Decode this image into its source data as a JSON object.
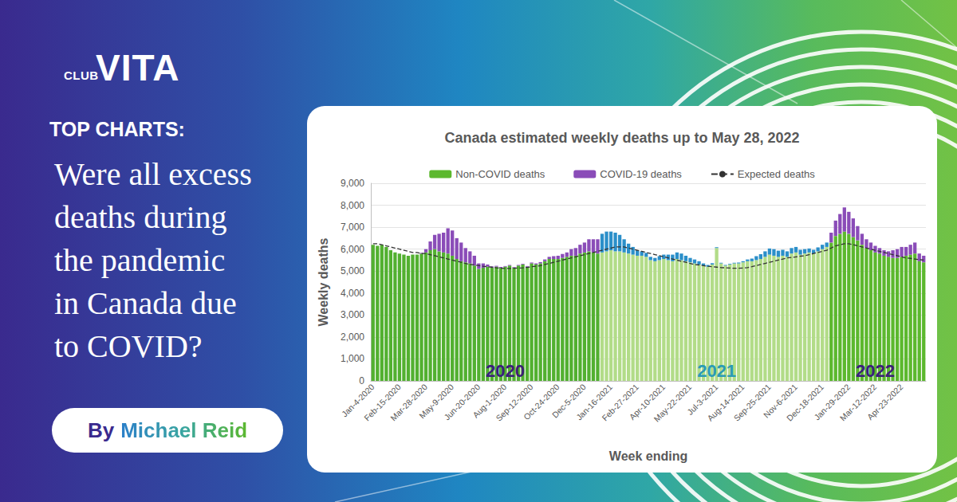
{
  "page": {
    "logo": {
      "small": "CLUB",
      "large": "VITA"
    },
    "kicker": "TOP CHARTS:",
    "headline": [
      "Were all excess",
      "deaths during",
      "the pandemic",
      "in Canada due",
      "to COVID?"
    ],
    "byline": {
      "prefix": "By",
      "name": "Michael Reid"
    }
  },
  "chart_data": {
    "type": "bar",
    "title": "Canada estimated weekly deaths up to May 28, 2022",
    "x_label": "Week ending",
    "y_label": "Weekly deaths",
    "stacked": true,
    "grid": true,
    "legend": "top",
    "ylim": [
      0,
      9000
    ],
    "yticks": [
      0,
      {
        "value": 1000,
        "label": "1,000"
      },
      {
        "value": 2000,
        "label": "2,000"
      },
      {
        "value": 3000,
        "label": "3,000"
      },
      {
        "value": 4000,
        "label": "4,000"
      },
      {
        "value": 5000,
        "label": "5,000"
      },
      {
        "value": 6000,
        "label": "6,000"
      },
      {
        "value": 7000,
        "label": "7,000"
      },
      {
        "value": 8000,
        "label": "8,000"
      },
      {
        "value": 9000,
        "label": "9,000"
      }
    ],
    "categories": [
      "Jan-4-2020",
      null,
      null,
      null,
      null,
      null,
      "Feb-15-2020",
      null,
      null,
      null,
      null,
      null,
      "Mar-28-2020",
      null,
      null,
      null,
      null,
      null,
      "May-9-2020",
      null,
      null,
      null,
      null,
      null,
      "Jun-20-2020",
      null,
      null,
      null,
      null,
      null,
      "Aug-1-2020",
      null,
      null,
      null,
      null,
      null,
      "Sep-12-2020",
      null,
      null,
      null,
      null,
      null,
      "Oct-24-2020",
      null,
      null,
      null,
      null,
      null,
      "Dec-5-2020",
      null,
      null,
      null,
      null,
      null,
      "Jan-16-2021",
      null,
      null,
      null,
      null,
      null,
      "Feb-27-2021",
      null,
      null,
      null,
      null,
      null,
      "Apr-10-2021",
      null,
      null,
      null,
      null,
      null,
      "May-22-2021",
      null,
      null,
      null,
      null,
      null,
      "Jul-3-2021",
      null,
      null,
      null,
      null,
      null,
      "Aug-14-2021",
      null,
      null,
      null,
      null,
      null,
      "Sep-25-2021",
      null,
      null,
      null,
      null,
      null,
      "Nov-6-2021",
      null,
      null,
      null,
      null,
      null,
      "Dec-18-2021",
      null,
      null,
      null,
      null,
      null,
      "Jan-29-2022",
      null,
      null,
      null,
      null,
      null,
      "Mar-12-2022",
      null,
      null,
      null,
      null,
      null,
      "Apr-23-2022",
      null,
      null,
      null,
      null,
      null
    ],
    "series": [
      {
        "name": "Non-COVID deaths",
        "type": "bar",
        "color": "#5cb82e",
        "colors": [
          "#52b030",
          "#52b030",
          "#52b030",
          "#52b030",
          "#52b030",
          "#52b030",
          "#52b030",
          "#52b030",
          "#52b030",
          "#52b030",
          "#52b030",
          "#52b030",
          "#52b030",
          "#52b030",
          "#52b030",
          "#52b030",
          "#52b030",
          "#52b030",
          "#52b030",
          "#52b030",
          "#52b030",
          "#52b030",
          "#52b030",
          "#52b030",
          "#52b030",
          "#52b030",
          "#52b030",
          "#52b030",
          "#52b030",
          "#52b030",
          "#52b030",
          "#52b030",
          "#52b030",
          "#52b030",
          "#52b030",
          "#52b030",
          "#52b030",
          "#52b030",
          "#52b030",
          "#52b030",
          "#52b030",
          "#52b030",
          "#52b030",
          "#52b030",
          "#52b030",
          "#52b030",
          "#52b030",
          "#52b030",
          "#52b030",
          "#52b030",
          "#52b030",
          "#52b030",
          "#b2dc88",
          "#b2dc88",
          "#b2dc88",
          "#b2dc88",
          "#b2dc88",
          "#b2dc88",
          "#b2dc88",
          "#b2dc88",
          "#b2dc88",
          "#b2dc88",
          "#b2dc88",
          "#b2dc88",
          "#b2dc88",
          "#b2dc88",
          "#b2dc88",
          "#b2dc88",
          "#b2dc88",
          "#b2dc88",
          "#b2dc88",
          "#b2dc88",
          "#b2dc88",
          "#b2dc88",
          "#b2dc88",
          "#b2dc88",
          "#b2dc88",
          "#b2dc88",
          "#b2dc88",
          "#b2dc88",
          "#b2dc88",
          "#b2dc88",
          "#b2dc88",
          "#b2dc88",
          "#b2dc88",
          "#b2dc88",
          "#b2dc88",
          "#b2dc88",
          "#b2dc88",
          "#b2dc88",
          "#b2dc88",
          "#b2dc88",
          "#b2dc88",
          "#b2dc88",
          "#b2dc88",
          "#b2dc88",
          "#b2dc88",
          "#b2dc88",
          "#b2dc88",
          "#b2dc88",
          "#b2dc88",
          "#b2dc88",
          "#b2dc88",
          "#b2dc88",
          "#5cb82e",
          "#5cb82e",
          "#5cb82e",
          "#5cb82e",
          "#5cb82e",
          "#5cb82e",
          "#5cb82e",
          "#5cb82e",
          "#5cb82e",
          "#5cb82e",
          "#5cb82e",
          "#5cb82e",
          "#5cb82e",
          "#5cb82e",
          "#5cb82e",
          "#5cb82e",
          "#5cb82e",
          "#5cb82e",
          "#5cb82e",
          "#5cb82e",
          "#5cb82e",
          "#5cb82e"
        ],
        "values": [
          6200,
          6150,
          6200,
          6100,
          5950,
          5850,
          5800,
          5750,
          5700,
          5750,
          5750,
          5800,
          5850,
          5950,
          6000,
          5900,
          5850,
          5800,
          5700,
          5550,
          5450,
          5400,
          5350,
          5250,
          5100,
          5150,
          5200,
          5150,
          5200,
          5150,
          5200,
          5250,
          5150,
          5250,
          5300,
          5200,
          5350,
          5300,
          5350,
          5450,
          5550,
          5550,
          5550,
          5600,
          5650,
          5700,
          5700,
          5800,
          5850,
          5900,
          5850,
          5800,
          5850,
          5900,
          5950,
          5900,
          5900,
          5850,
          5800,
          5750,
          5700,
          5700,
          5650,
          5500,
          5450,
          5500,
          5550,
          5500,
          5450,
          5550,
          5500,
          5450,
          5400,
          5350,
          5300,
          5250,
          5200,
          5300,
          6050,
          5350,
          5250,
          5300,
          5350,
          5350,
          5400,
          5450,
          5450,
          5500,
          5550,
          5650,
          5750,
          5700,
          5650,
          5700,
          5650,
          5800,
          5850,
          5750,
          5800,
          5850,
          5800,
          5900,
          6000,
          6100,
          6300,
          6600,
          6700,
          6800,
          6700,
          6550,
          6400,
          6200,
          6050,
          5950,
          5850,
          5800,
          5700,
          5650,
          5600,
          5600,
          5650,
          5700,
          5750,
          5800,
          5450,
          5400
        ]
      },
      {
        "name": "COVID-19 deaths",
        "type": "bar",
        "color": "#8a4cb8",
        "colors": [
          "#8a4cb8",
          "#8a4cb8",
          "#8a4cb8",
          "#8a4cb8",
          "#8a4cb8",
          "#8a4cb8",
          "#8a4cb8",
          "#8a4cb8",
          "#8a4cb8",
          "#8a4cb8",
          "#8a4cb8",
          "#8a4cb8",
          "#8a4cb8",
          "#8a4cb8",
          "#8a4cb8",
          "#8a4cb8",
          "#8a4cb8",
          "#8a4cb8",
          "#8a4cb8",
          "#8a4cb8",
          "#8a4cb8",
          "#8a4cb8",
          "#8a4cb8",
          "#8a4cb8",
          "#8a4cb8",
          "#8a4cb8",
          "#8a4cb8",
          "#8a4cb8",
          "#8a4cb8",
          "#8a4cb8",
          "#8a4cb8",
          "#8a4cb8",
          "#8a4cb8",
          "#8a4cb8",
          "#8a4cb8",
          "#8a4cb8",
          "#8a4cb8",
          "#8a4cb8",
          "#8a4cb8",
          "#8a4cb8",
          "#8a4cb8",
          "#8a4cb8",
          "#8a4cb8",
          "#8a4cb8",
          "#8a4cb8",
          "#8a4cb8",
          "#8a4cb8",
          "#8a4cb8",
          "#8a4cb8",
          "#8a4cb8",
          "#8a4cb8",
          "#8a4cb8",
          "#2b8fc9",
          "#2b8fc9",
          "#2b8fc9",
          "#2b8fc9",
          "#2b8fc9",
          "#2b8fc9",
          "#2b8fc9",
          "#2b8fc9",
          "#2b8fc9",
          "#2b8fc9",
          "#2b8fc9",
          "#2b8fc9",
          "#2b8fc9",
          "#2b8fc9",
          "#2b8fc9",
          "#2b8fc9",
          "#2b8fc9",
          "#2b8fc9",
          "#2b8fc9",
          "#2b8fc9",
          "#2b8fc9",
          "#2b8fc9",
          "#2b8fc9",
          "#2b8fc9",
          "#2b8fc9",
          "#2b8fc9",
          "#2b8fc9",
          "#2b8fc9",
          "#2b8fc9",
          "#2b8fc9",
          "#2b8fc9",
          "#2b8fc9",
          "#2b8fc9",
          "#2b8fc9",
          "#2b8fc9",
          "#2b8fc9",
          "#2b8fc9",
          "#2b8fc9",
          "#2b8fc9",
          "#2b8fc9",
          "#2b8fc9",
          "#2b8fc9",
          "#2b8fc9",
          "#2b8fc9",
          "#2b8fc9",
          "#2b8fc9",
          "#2b8fc9",
          "#2b8fc9",
          "#2b8fc9",
          "#2b8fc9",
          "#2b8fc9",
          "#2b8fc9",
          "#8a4cb8",
          "#8a4cb8",
          "#8a4cb8",
          "#8a4cb8",
          "#8a4cb8",
          "#8a4cb8",
          "#8a4cb8",
          "#8a4cb8",
          "#8a4cb8",
          "#8a4cb8",
          "#8a4cb8",
          "#8a4cb8",
          "#8a4cb8",
          "#8a4cb8",
          "#8a4cb8",
          "#8a4cb8",
          "#8a4cb8",
          "#8a4cb8",
          "#8a4cb8",
          "#8a4cb8",
          "#8a4cb8",
          "#8a4cb8"
        ],
        "values": [
          0,
          0,
          0,
          0,
          0,
          0,
          0,
          0,
          0,
          0,
          0,
          30,
          150,
          400,
          650,
          800,
          900,
          1150,
          1150,
          950,
          850,
          650,
          550,
          450,
          250,
          200,
          100,
          60,
          40,
          40,
          30,
          30,
          30,
          30,
          30,
          30,
          40,
          50,
          60,
          80,
          100,
          130,
          150,
          180,
          200,
          300,
          350,
          400,
          450,
          550,
          600,
          650,
          850,
          900,
          850,
          850,
          750,
          600,
          450,
          350,
          250,
          200,
          180,
          150,
          150,
          180,
          200,
          250,
          300,
          300,
          300,
          250,
          200,
          180,
          150,
          100,
          80,
          60,
          40,
          30,
          30,
          30,
          30,
          40,
          50,
          80,
          120,
          180,
          220,
          250,
          280,
          300,
          280,
          270,
          250,
          250,
          250,
          220,
          200,
          180,
          170,
          180,
          200,
          200,
          450,
          700,
          900,
          1100,
          1000,
          850,
          650,
          500,
          400,
          350,
          300,
          250,
          250,
          250,
          350,
          400,
          450,
          400,
          450,
          500,
          350,
          300
        ]
      },
      {
        "name": "Expected deaths",
        "type": "line",
        "color": "#333333",
        "line_style": "dashed",
        "values": [
          6250,
          6250,
          6200,
          6150,
          6100,
          6050,
          6000,
          5950,
          5900,
          5850,
          5850,
          5800,
          5800,
          5750,
          5700,
          5650,
          5600,
          5550,
          5500,
          5450,
          5400,
          5350,
          5300,
          5280,
          5250,
          5220,
          5200,
          5180,
          5150,
          5130,
          5120,
          5120,
          5130,
          5140,
          5150,
          5170,
          5200,
          5220,
          5250,
          5300,
          5350,
          5400,
          5450,
          5500,
          5550,
          5600,
          5650,
          5700,
          5750,
          5800,
          5850,
          5900,
          5950,
          6000,
          6050,
          6100,
          6100,
          6100,
          6050,
          6000,
          5950,
          5900,
          5850,
          5800,
          5750,
          5700,
          5650,
          5600,
          5550,
          5500,
          5450,
          5400,
          5350,
          5300,
          5280,
          5250,
          5220,
          5200,
          5180,
          5160,
          5150,
          5140,
          5130,
          5130,
          5140,
          5160,
          5200,
          5250,
          5300,
          5350,
          5400,
          5450,
          5500,
          5550,
          5600,
          5620,
          5650,
          5680,
          5700,
          5750,
          5800,
          5850,
          5900,
          5950,
          6050,
          6150,
          6200,
          6250,
          6250,
          6200,
          6150,
          6100,
          6050,
          6000,
          5950,
          5900,
          5850,
          5800,
          5750,
          5700,
          5650,
          5600,
          5580,
          5550,
          5520,
          5500
        ]
      }
    ],
    "annotations": [
      {
        "text": "2020",
        "x": "Aug-1-2020",
        "y": 450,
        "color": "#3b1f7a"
      },
      {
        "text": "2021",
        "x": "Jul-3-2021",
        "y": 450,
        "color": "#2a9bb5"
      },
      {
        "text": "2022",
        "x": "Mar-12-2022",
        "y": 450,
        "color": "#3b1f7a"
      }
    ]
  }
}
